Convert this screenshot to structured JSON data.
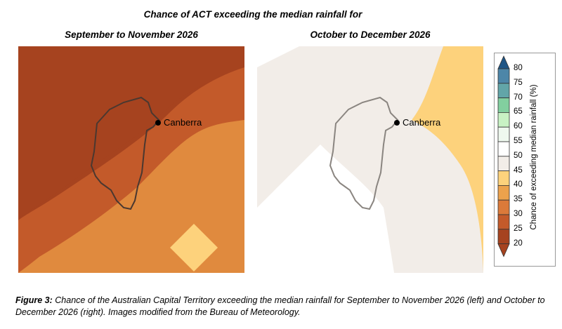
{
  "title": "Chance of ACT exceeding the median rainfall for",
  "panels": [
    {
      "subtitle": "September to November 2026",
      "city": "Canberra"
    },
    {
      "subtitle": "October to December 2026",
      "city": "Canberra"
    }
  ],
  "legend": {
    "title": "Chance of exceeding median rainfall (%)",
    "ticks": [
      "80",
      "75",
      "70",
      "65",
      "60",
      "55",
      "50",
      "45",
      "40",
      "35",
      "30",
      "25",
      "20"
    ],
    "colors": [
      "#2a5e8c",
      "#4d86a8",
      "#62a5a8",
      "#82cf9f",
      "#c8f2c4",
      "#eef8ee",
      "#ffffff",
      "#f2ede8",
      "#fdd27c",
      "#eca24c",
      "#db7a3a",
      "#c35a2a",
      "#a6431f"
    ]
  },
  "caption": {
    "label": "Figure 3:",
    "text": " Chance of the Australian Capital Territory exceeding the median rainfall for September to November 2026 (left) and October to December 2026 (right). Images modified from the Bureau of Meteorology."
  }
}
